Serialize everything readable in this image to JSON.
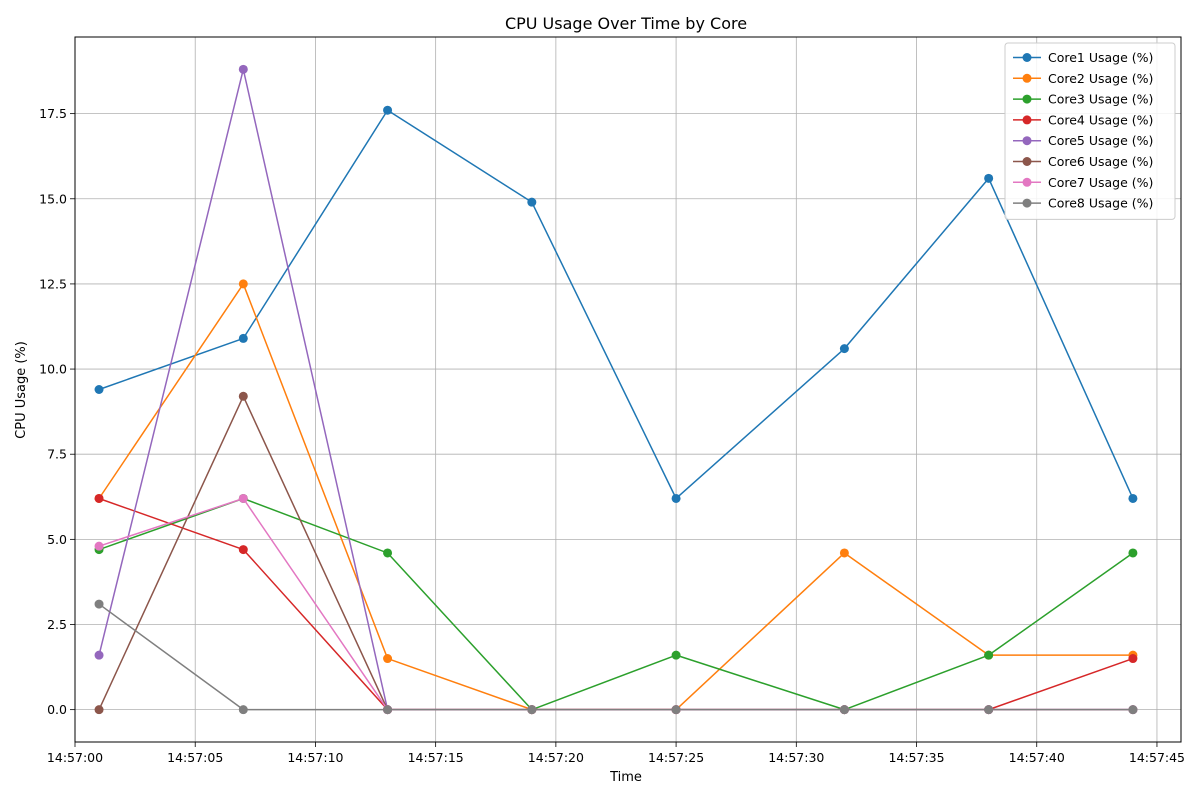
{
  "chart_data": {
    "type": "line",
    "title": "CPU Usage Over Time by Core",
    "xlabel": "Time",
    "ylabel": "CPU Usage (%)",
    "x": [
      "14:57:01",
      "14:57:07",
      "14:57:13",
      "14:57:19",
      "14:57:25",
      "14:57:32",
      "14:57:38",
      "14:57:44"
    ],
    "x_ticks": [
      "14:57:00",
      "14:57:05",
      "14:57:10",
      "14:57:15",
      "14:57:20",
      "14:57:25",
      "14:57:30",
      "14:57:35",
      "14:57:40",
      "14:57:45"
    ],
    "x_range": [
      "14:57:00",
      "14:57:46"
    ],
    "y_ticks": [
      "0.0",
      "2.5",
      "5.0",
      "7.5",
      "10.0",
      "12.5",
      "15.0",
      "17.5"
    ],
    "ylim": [
      -0.95,
      19.75
    ],
    "grid": true,
    "legend_position": "top-right",
    "series": [
      {
        "name": "Core1 Usage (%)",
        "color": "#1f77b4",
        "values": [
          9.4,
          10.9,
          17.6,
          14.9,
          6.2,
          10.6,
          15.6,
          6.2
        ]
      },
      {
        "name": "Core2 Usage (%)",
        "color": "#ff7f0e",
        "values": [
          6.2,
          12.5,
          1.5,
          0.0,
          0.0,
          4.6,
          1.6,
          1.6
        ]
      },
      {
        "name": "Core3 Usage (%)",
        "color": "#2ca02c",
        "values": [
          4.7,
          6.2,
          4.6,
          0.0,
          1.6,
          0.0,
          1.6,
          4.6
        ]
      },
      {
        "name": "Core4 Usage (%)",
        "color": "#d62728",
        "values": [
          6.2,
          4.7,
          0.0,
          0.0,
          0.0,
          0.0,
          0.0,
          1.5
        ]
      },
      {
        "name": "Core5 Usage (%)",
        "color": "#9467bd",
        "values": [
          1.6,
          18.8,
          0.0,
          0.0,
          0.0,
          0.0,
          0.0,
          0.0
        ]
      },
      {
        "name": "Core6 Usage (%)",
        "color": "#8c564b",
        "values": [
          0.0,
          9.2,
          0.0,
          0.0,
          0.0,
          0.0,
          0.0,
          0.0
        ]
      },
      {
        "name": "Core7 Usage (%)",
        "color": "#e377c2",
        "values": [
          4.8,
          6.2,
          0.0,
          0.0,
          0.0,
          0.0,
          0.0,
          0.0
        ]
      },
      {
        "name": "Core8 Usage (%)",
        "color": "#7f7f7f",
        "values": [
          3.1,
          0.0,
          0.0,
          0.0,
          0.0,
          0.0,
          0.0,
          0.0
        ]
      }
    ]
  }
}
